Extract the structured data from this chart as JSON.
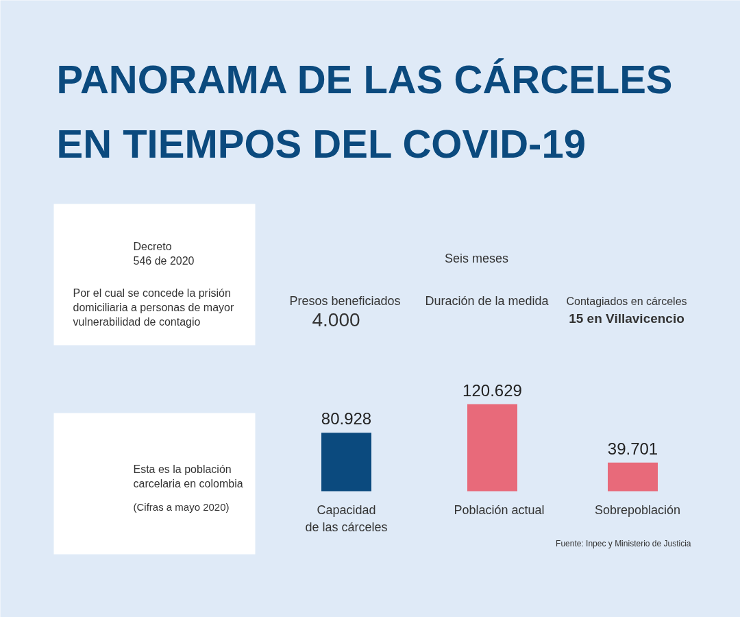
{
  "chart_data": [
    {
      "type": "other",
      "title": "PANORAMA DE LAS CÁRCELES EN TIEMPOS DEL COVID-19",
      "annotations": [
        "Decreto\n546 de 2020",
        "Por el cual se concede la prisión\ndomiciliaria a personas de mayor\nvulnerabilidad de contagio",
        "Presos beneficiados",
        "4.000",
        "Seis meses",
        "Duración de la medida",
        "Contagiados en cárceles",
        "15 en Villavicencio"
      ]
    },
    {
      "type": "bar",
      "categories": [
        "Capacidad\nde las cárceles",
        "Población actual",
        "Sobrepoblación"
      ],
      "values": [
        80928,
        120629,
        39701
      ],
      "colors": [
        "#0b4a7e",
        "#e86a7a",
        "#e86a7a"
      ],
      "value_labels": [
        "80.928",
        "120.629",
        "39.701"
      ],
      "annotations": [
        "Esta es la población\ncarcelaria en colombia",
        "(Cifras a mayo 2020)",
        "Fuente: Inpec y Ministerio de Justicia"
      ]
    }
  ]
}
